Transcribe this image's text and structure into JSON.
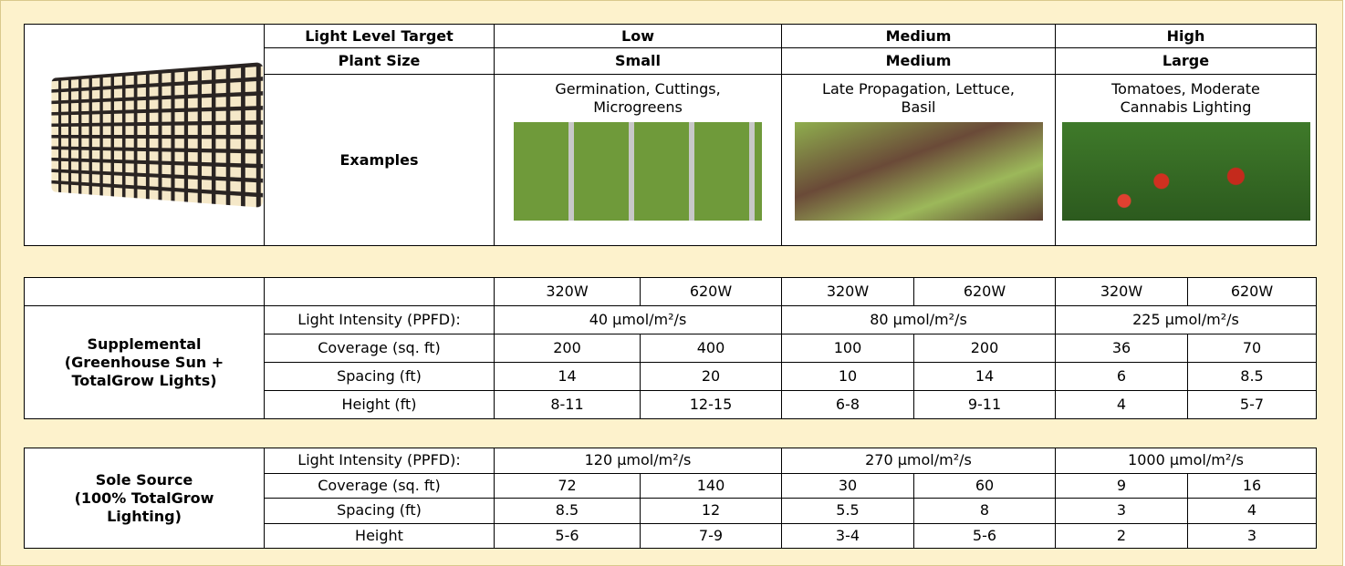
{
  "top_table": {
    "header_rows": [
      [
        "Light Level Target",
        "Low",
        "Medium",
        "High"
      ],
      [
        "Plant Size",
        "Small",
        "Medium",
        "Large"
      ]
    ],
    "examples_label": "Examples",
    "examples": [
      "Germination, Cuttings, Microgreens",
      "Late Propagation, Lettuce, Basil",
      "Tomatoes, Moderate Cannabis Lighting"
    ]
  },
  "supplemental_table": {
    "wattages": [
      "320W",
      "620W",
      "320W",
      "620W",
      "320W",
      "620W"
    ],
    "label_lines": [
      "Supplemental",
      "(Greenhouse Sun +",
      "TotalGrow Lights)"
    ],
    "intensity_label": "Light Intensity (PPFD):",
    "intensity": [
      "40 µmol/m²/s",
      "80 µmol/m²/s",
      "225 µmol/m²/s"
    ],
    "rows": [
      [
        "Coverage (sq. ft)",
        "200",
        "400",
        "100",
        "200",
        "36",
        "70"
      ],
      [
        "Spacing (ft)",
        "14",
        "20",
        "10",
        "14",
        "6",
        "8.5"
      ],
      [
        "Height (ft)",
        "8-11",
        "12-15",
        "6-8",
        "9-11",
        "4",
        "5-7"
      ]
    ]
  },
  "sole_source_table": {
    "label_lines": [
      "Sole Source",
      "(100% TotalGrow",
      "Lighting)"
    ],
    "intensity_label": "Light Intensity (PPFD):",
    "intensity": [
      "120 µmol/m²/s",
      "270 µmol/m²/s",
      "1000 µmol/m²/s"
    ],
    "rows": [
      [
        "Coverage (sq. ft)",
        "72",
        "140",
        "30",
        "60",
        "9",
        "16"
      ],
      [
        "Spacing (ft)",
        "8.5",
        "12",
        "5.5",
        "8",
        "3",
        "4"
      ],
      [
        "Height",
        "5-6",
        "7-9",
        "3-4",
        "5-6",
        "2",
        "3"
      ]
    ]
  }
}
